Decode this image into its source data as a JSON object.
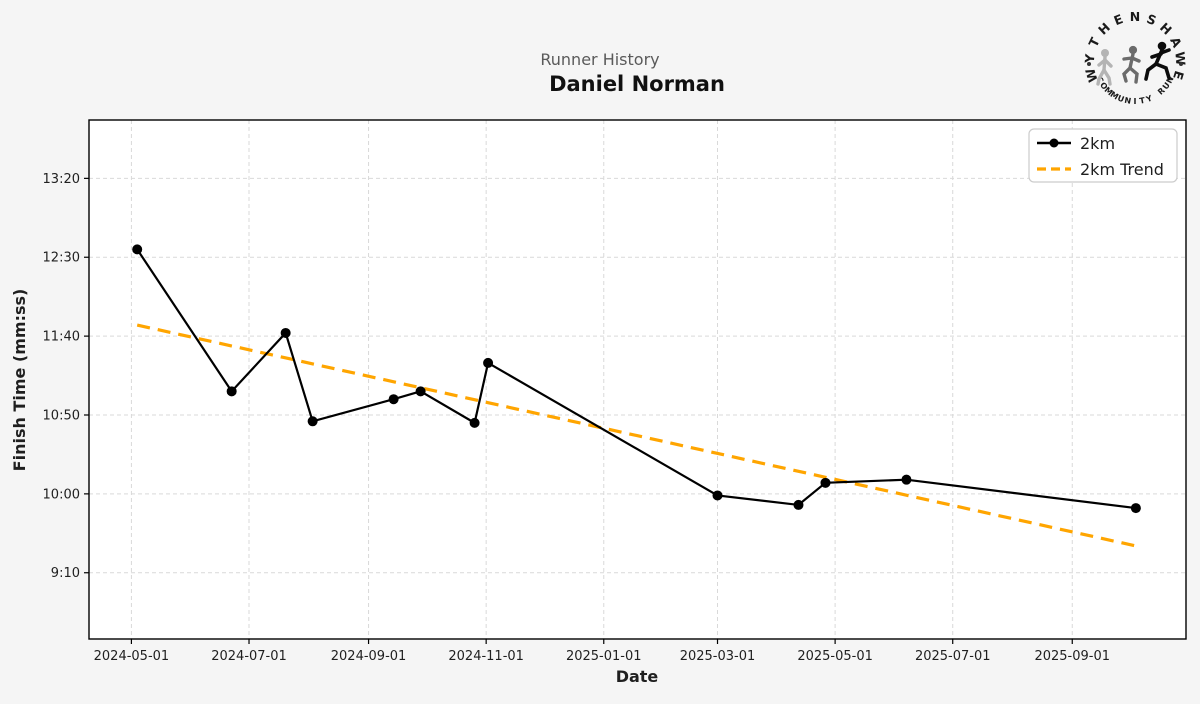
{
  "header": {
    "suptitle": "Runner History",
    "runner_name": "Daniel Norman"
  },
  "logo": {
    "top_text": "WYTHENSHAWE",
    "bottom_text": "COMMUNITY RUN"
  },
  "colors": {
    "figure_bg": "#f5f5f5",
    "plot_bg": "#ffffff",
    "grid": "#d9d9d9",
    "spine": "#000000",
    "series_2km": "#000000",
    "trend": "#FFA500",
    "suptitle": "#5a5a5a",
    "title": "#111111",
    "text": "#1f1f1f",
    "legend_border": "#cccccc",
    "logo_runner_1": "#b4b4b4",
    "logo_runner_2": "#6b6b6b",
    "logo_runner_3": "#0c0c0c"
  },
  "chart_data": {
    "type": "line",
    "suptitle": "Runner History",
    "title": "Daniel Norman",
    "xlabel": "Date",
    "ylabel": "Finish Time (mm:ss)",
    "grid": true,
    "legend_position": "upper right",
    "xlim": [
      "2024-04-09",
      "2025-10-30"
    ],
    "ylim_seconds": [
      508,
      837
    ],
    "x_ticks": [
      "2024-05-01",
      "2024-07-01",
      "2024-09-01",
      "2024-11-01",
      "2025-01-01",
      "2025-03-01",
      "2025-05-01",
      "2025-07-01",
      "2025-09-01"
    ],
    "y_ticks": [
      {
        "label": "13:20",
        "seconds": 800
      },
      {
        "label": "12:30",
        "seconds": 750
      },
      {
        "label": "11:40",
        "seconds": 700
      },
      {
        "label": "10:50",
        "seconds": 650
      },
      {
        "label": "10:00",
        "seconds": 600
      },
      {
        "label": "9:10",
        "seconds": 550
      }
    ],
    "series": [
      {
        "name": "2km",
        "style": "solid-with-markers",
        "color": "#000000",
        "points": [
          {
            "date": "2024-05-04",
            "time": "12:35",
            "seconds": 755
          },
          {
            "date": "2024-06-22",
            "time": "11:05",
            "seconds": 665
          },
          {
            "date": "2024-07-20",
            "time": "11:42",
            "seconds": 702
          },
          {
            "date": "2024-08-03",
            "time": "10:46",
            "seconds": 646
          },
          {
            "date": "2024-09-14",
            "time": "11:00",
            "seconds": 660
          },
          {
            "date": "2024-09-28",
            "time": "11:05",
            "seconds": 665
          },
          {
            "date": "2024-10-26",
            "time": "10:45",
            "seconds": 645
          },
          {
            "date": "2024-11-02",
            "time": "11:23",
            "seconds": 683
          },
          {
            "date": "2025-03-01",
            "time": "9:59",
            "seconds": 599
          },
          {
            "date": "2025-04-12",
            "time": "9:53",
            "seconds": 593
          },
          {
            "date": "2025-04-26",
            "time": "10:07",
            "seconds": 607
          },
          {
            "date": "2025-06-07",
            "time": "10:09",
            "seconds": 609
          },
          {
            "date": "2025-10-04",
            "time": "9:51",
            "seconds": 591
          }
        ]
      },
      {
        "name": "2km Trend",
        "style": "dashed",
        "color": "#FFA500",
        "points": [
          {
            "date": "2024-05-04",
            "time": "11:47",
            "seconds": 707
          },
          {
            "date": "2025-10-04",
            "time": "9:27",
            "seconds": 567
          }
        ]
      }
    ]
  }
}
